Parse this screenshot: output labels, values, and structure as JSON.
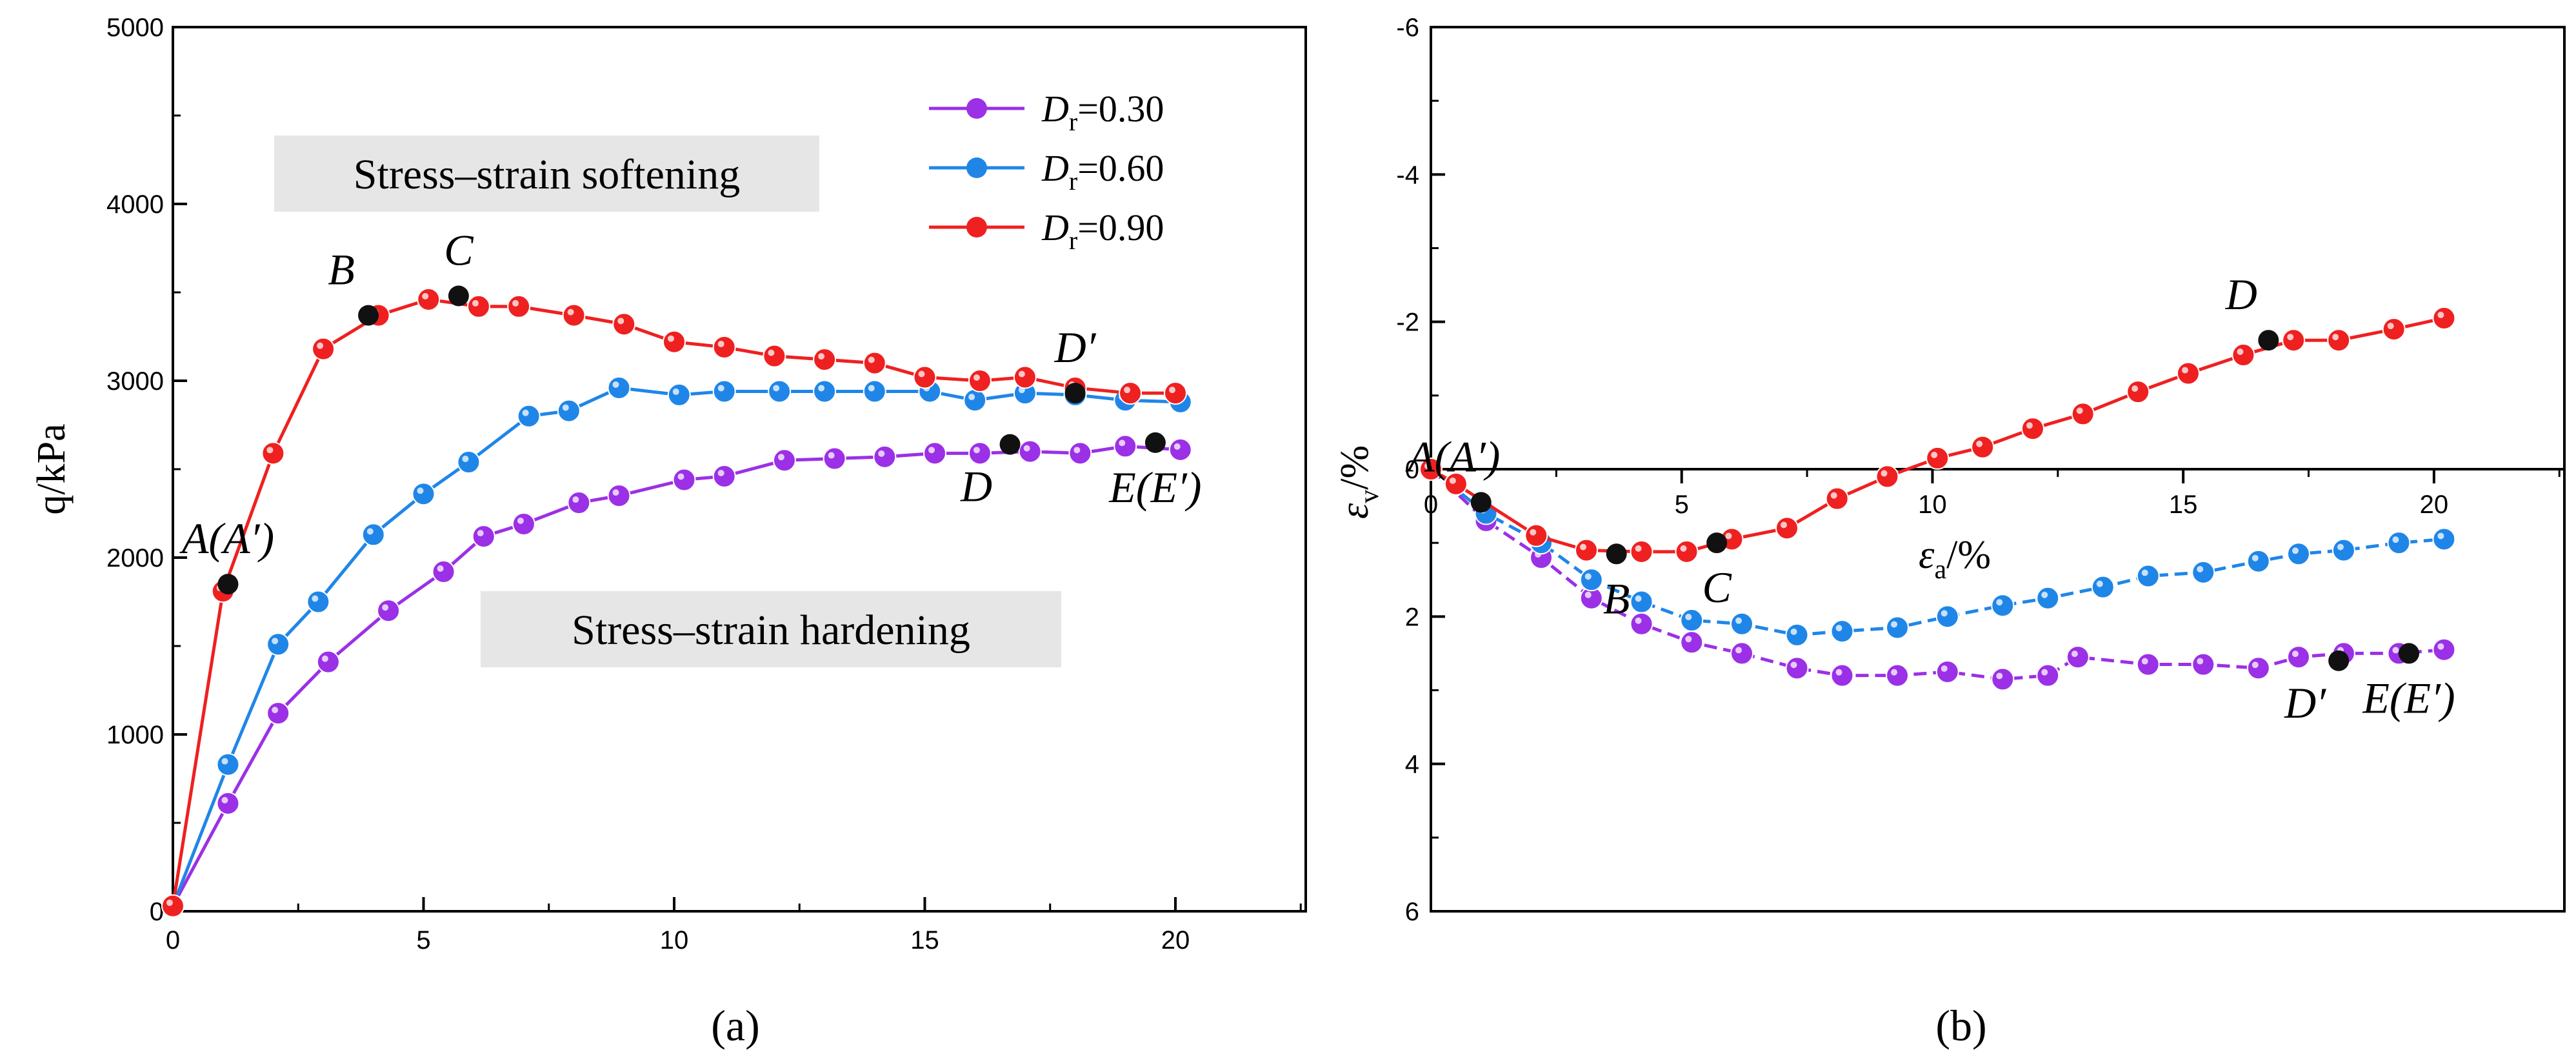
{
  "colors": {
    "purple": "#9b30e6",
    "blue": "#1f86e8",
    "red": "#ef2020",
    "marker": "#111111",
    "annotation_box": "#e6e6e6"
  },
  "chart_data": [
    {
      "panel": "a",
      "panel_label": "(a)",
      "type": "line",
      "xlabel": "",
      "ylabel": "q/kPa",
      "xlim": [
        0,
        22.6
      ],
      "ylim": [
        0,
        5000
      ],
      "xticks": [
        0,
        5,
        10,
        15,
        20
      ],
      "yticks": [
        0,
        1000,
        2000,
        3000,
        4000,
        5000
      ],
      "legend_position": "top-right",
      "series": [
        {
          "name": "Dr=0.30",
          "legend_symbol": "D",
          "legend_subscript": "r",
          "legend_value": "=0.30",
          "color": "#9b30e6",
          "x": [
            0.0,
            1.1,
            2.1,
            3.1,
            4.3,
            5.4,
            6.2,
            7.0,
            8.1,
            8.9,
            10.2,
            11.0,
            12.2,
            13.2,
            14.2,
            15.2,
            16.1,
            17.1,
            18.1,
            19.0,
            20.1
          ],
          "y": [
            30,
            610,
            1120,
            1410,
            1700,
            1920,
            2120,
            2190,
            2310,
            2350,
            2440,
            2460,
            2550,
            2560,
            2570,
            2590,
            2590,
            2600,
            2590,
            2630,
            2610
          ]
        },
        {
          "name": "Dr=0.60",
          "legend_symbol": "D",
          "legend_subscript": "r",
          "legend_value": "=0.60",
          "color": "#1f86e8",
          "x": [
            0.0,
            1.1,
            2.1,
            2.9,
            4.0,
            5.0,
            5.9,
            7.1,
            7.9,
            8.9,
            10.1,
            11.0,
            12.1,
            13.0,
            14.0,
            15.1,
            16.0,
            17.0,
            18.0,
            19.0,
            20.1
          ],
          "y": [
            30,
            830,
            1510,
            1750,
            2130,
            2360,
            2540,
            2800,
            2830,
            2960,
            2920,
            2940,
            2940,
            2940,
            2940,
            2940,
            2890,
            2930,
            2920,
            2890,
            2880
          ]
        },
        {
          "name": "Dr=0.90",
          "legend_symbol": "D",
          "legend_subscript": "r",
          "legend_value": "=0.90",
          "color": "#ef2020",
          "x": [
            0.0,
            1.0,
            2.0,
            3.0,
            4.1,
            5.1,
            6.1,
            6.9,
            8.0,
            9.0,
            10.0,
            11.0,
            12.0,
            13.0,
            14.0,
            15.0,
            16.1,
            17.0,
            18.0,
            19.1,
            20.0
          ],
          "y": [
            30,
            1810,
            2590,
            3180,
            3370,
            3460,
            3420,
            3420,
            3370,
            3320,
            3220,
            3190,
            3140,
            3120,
            3100,
            3020,
            3000,
            3020,
            2960,
            2930,
            2930
          ]
        }
      ],
      "key_points": [
        {
          "label": "A(A′)",
          "x": 1.1,
          "y": 1850,
          "label_pos": "above"
        },
        {
          "label": "B",
          "x": 3.9,
          "y": 3370,
          "label_pos": "above-left"
        },
        {
          "label": "C",
          "x": 5.7,
          "y": 3480,
          "label_pos": "above"
        },
        {
          "label": "D′",
          "x": 18.0,
          "y": 2930,
          "label_pos": "above"
        },
        {
          "label": "D",
          "x": 16.7,
          "y": 2640,
          "label_pos": "below-left"
        },
        {
          "label": "E(E′)",
          "x": 19.6,
          "y": 2650,
          "label_pos": "below"
        }
      ],
      "annotations": [
        {
          "text": "Stress–strain softening"
        },
        {
          "text": "Stress–strain hardening"
        }
      ]
    },
    {
      "panel": "b",
      "panel_label": "(b)",
      "type": "line",
      "xlabel": "εa/%",
      "xlabel_symbol": "ε",
      "xlabel_subscript": "a",
      "xlabel_unit": "/%",
      "ylabel": "εv/%",
      "ylabel_symbol": "ε",
      "ylabel_subscript": "v",
      "ylabel_unit": "/%",
      "xlim": [
        0,
        22.6
      ],
      "ylim": [
        6,
        -6
      ],
      "y_inverted": true,
      "xticks": [
        0,
        5,
        10,
        15,
        20
      ],
      "yticks": [
        6,
        4,
        2,
        0,
        -2,
        -4,
        -6
      ],
      "series": [
        {
          "name": "Dr=0.30",
          "color": "#9b30e6",
          "x": [
            0.0,
            1.1,
            2.2,
            3.2,
            4.2,
            5.2,
            6.2,
            7.3,
            8.2,
            9.3,
            10.3,
            11.4,
            12.3,
            12.9,
            14.3,
            15.4,
            16.5,
            17.3,
            18.2,
            19.3,
            20.2
          ],
          "y": [
            0.0,
            0.7,
            1.2,
            1.75,
            2.1,
            2.35,
            2.5,
            2.7,
            2.8,
            2.8,
            2.75,
            2.85,
            2.8,
            2.55,
            2.65,
            2.65,
            2.7,
            2.55,
            2.5,
            2.5,
            2.45
          ]
        },
        {
          "name": "Dr=0.60",
          "color": "#1f86e8",
          "x": [
            0.0,
            1.1,
            2.2,
            3.2,
            4.2,
            5.2,
            6.2,
            7.3,
            8.2,
            9.3,
            10.3,
            11.4,
            12.3,
            13.4,
            14.3,
            15.4,
            16.5,
            17.3,
            18.2,
            19.3,
            20.2
          ],
          "y": [
            0.0,
            0.6,
            1.0,
            1.5,
            1.8,
            2.05,
            2.1,
            2.25,
            2.2,
            2.15,
            2.0,
            1.85,
            1.75,
            1.6,
            1.45,
            1.4,
            1.25,
            1.15,
            1.1,
            1.0,
            0.95
          ]
        },
        {
          "name": "Dr=0.90",
          "color": "#ef2020",
          "x": [
            0.0,
            0.5,
            2.1,
            3.1,
            4.2,
            5.1,
            6.0,
            7.1,
            8.1,
            9.1,
            10.1,
            11.0,
            12.0,
            13.0,
            14.1,
            15.1,
            16.2,
            17.2,
            18.1,
            19.2,
            20.2
          ],
          "y": [
            0.0,
            0.2,
            0.9,
            1.1,
            1.12,
            1.12,
            0.95,
            0.8,
            0.4,
            0.1,
            -0.15,
            -0.3,
            -0.55,
            -0.75,
            -1.05,
            -1.3,
            -1.55,
            -1.75,
            -1.75,
            -1.9,
            -2.05
          ]
        }
      ],
      "key_points": [
        {
          "label": "A(A′)",
          "x": 1.0,
          "y": 0.45,
          "label_pos": "above-left"
        },
        {
          "label": "B",
          "x": 3.7,
          "y": 1.15,
          "label_pos": "below"
        },
        {
          "label": "C",
          "x": 5.7,
          "y": 1.0,
          "label_pos": "below"
        },
        {
          "label": "D",
          "x": 16.7,
          "y": -1.75,
          "label_pos": "above-left"
        },
        {
          "label": "D′",
          "x": 18.1,
          "y": 2.6,
          "label_pos": "below-left"
        },
        {
          "label": "E(E′)",
          "x": 19.5,
          "y": 2.5,
          "label_pos": "below"
        }
      ]
    }
  ]
}
